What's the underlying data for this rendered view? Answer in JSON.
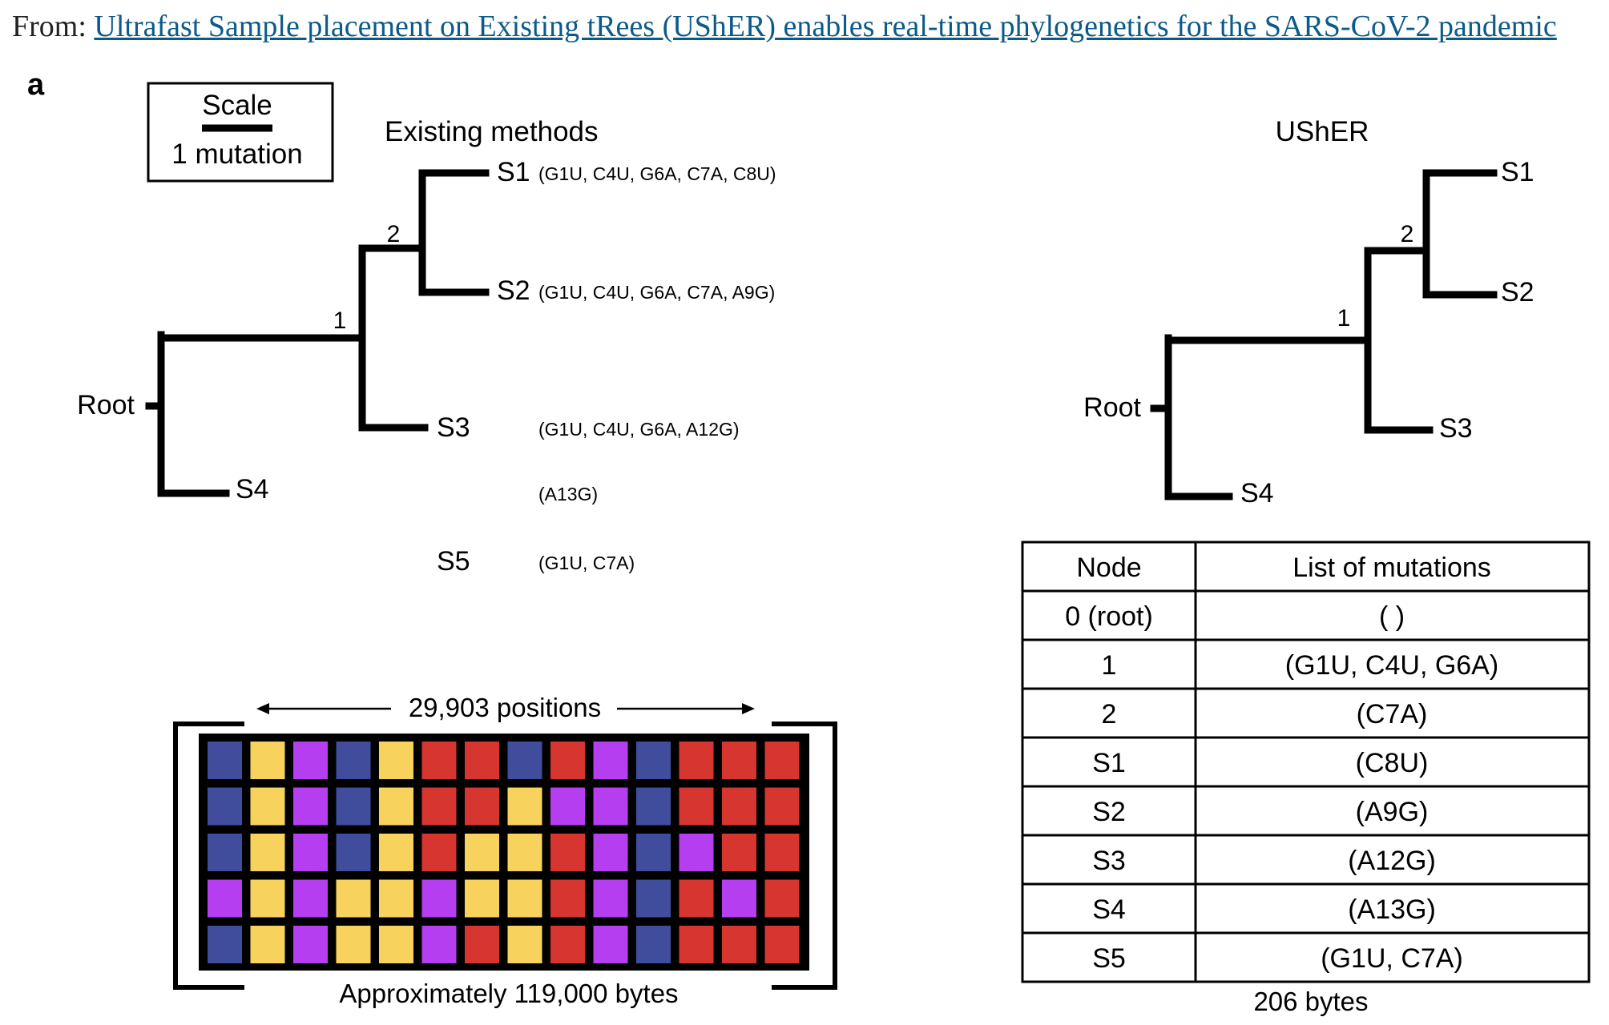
{
  "header": {
    "prefix": "From:",
    "link_text": "Ultrafast Sample placement on Existing tRees (UShER) enables real-time phylogenetics for the SARS-CoV-2 pandemic"
  },
  "panel_label": "a",
  "scale": {
    "title": "Scale",
    "unit": "1 mutation"
  },
  "existing": {
    "title": "Existing methods",
    "root": "Root",
    "node1": "1",
    "node2": "2",
    "leaves": [
      {
        "name": "S1",
        "mutations": "(G1U, C4U, G6A, C7A, C8U)"
      },
      {
        "name": "S2",
        "mutations": "(G1U, C4U, G6A, C7A, A9G)"
      },
      {
        "name": "S3",
        "mutations": "(G1U, C4U, G6A, A12G)"
      },
      {
        "name": "S4",
        "mutations": "(A13G)"
      },
      {
        "name": "S5",
        "mutations": "(G1U, C7A)"
      }
    ]
  },
  "matrix": {
    "positions_label": "29,903 positions",
    "size_label": "Approximately 119,000 bytes",
    "palette": {
      "B": "#3f4d9c",
      "Y": "#f7d35e",
      "P": "#b43ef0",
      "R": "#d7352f"
    },
    "rows": [
      [
        "B",
        "Y",
        "P",
        "B",
        "Y",
        "R",
        "R",
        "B",
        "R",
        "P",
        "B",
        "R",
        "R",
        "R"
      ],
      [
        "B",
        "Y",
        "P",
        "B",
        "Y",
        "R",
        "R",
        "Y",
        "P",
        "P",
        "B",
        "R",
        "R",
        "R"
      ],
      [
        "B",
        "Y",
        "P",
        "B",
        "Y",
        "R",
        "Y",
        "Y",
        "R",
        "P",
        "B",
        "P",
        "R",
        "R"
      ],
      [
        "P",
        "Y",
        "P",
        "Y",
        "Y",
        "P",
        "Y",
        "Y",
        "R",
        "P",
        "B",
        "R",
        "P",
        "R"
      ],
      [
        "B",
        "Y",
        "P",
        "Y",
        "Y",
        "P",
        "R",
        "Y",
        "R",
        "P",
        "B",
        "R",
        "R",
        "R"
      ]
    ]
  },
  "usher": {
    "title": "UShER",
    "root": "Root",
    "node1": "1",
    "node2": "2",
    "leaves": [
      "S1",
      "S2",
      "S3",
      "S4"
    ]
  },
  "table": {
    "headers": [
      "Node",
      "List of mutations"
    ],
    "rows": [
      [
        "0 (root)",
        "( )"
      ],
      [
        "1",
        "(G1U, C4U, G6A)"
      ],
      [
        "2",
        "(C7A)"
      ],
      [
        "S1",
        "(C8U)"
      ],
      [
        "S2",
        "(A9G)"
      ],
      [
        "S3",
        "(A12G)"
      ],
      [
        "S4",
        "(A13G)"
      ],
      [
        "S5",
        "(G1U, C7A)"
      ]
    ],
    "size_label": "206 bytes"
  }
}
